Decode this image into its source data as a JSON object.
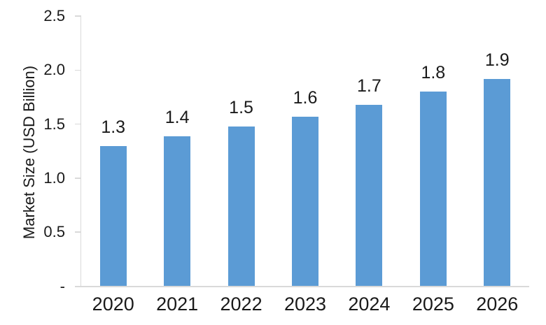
{
  "chart_data": {
    "type": "bar",
    "title": "",
    "xlabel": "",
    "ylabel": "Market Size (USD Billion)",
    "categories": [
      "2020",
      "2021",
      "2022",
      "2023",
      "2024",
      "2025",
      "2026"
    ],
    "values": [
      1.3,
      1.4,
      1.5,
      1.6,
      1.7,
      1.8,
      1.9
    ],
    "value_labels": [
      "1.3",
      "1.4",
      "1.5",
      "1.6",
      "1.7",
      "1.8",
      "1.9"
    ],
    "bar_heights_units": [
      1.3,
      1.39,
      1.48,
      1.57,
      1.68,
      1.8,
      1.92
    ],
    "ylim": [
      0,
      2.5
    ],
    "yticks": [
      {
        "value": 2.5,
        "label": "2.5"
      },
      {
        "value": 2.0,
        "label": "2.0"
      },
      {
        "value": 1.5,
        "label": "1.5"
      },
      {
        "value": 1.0,
        "label": "1.0"
      },
      {
        "value": 0.5,
        "label": "0.5"
      },
      {
        "value": 0.0,
        "label": "-"
      }
    ],
    "grid": false,
    "legend": "none",
    "colors": {
      "bar": "#5B9BD5",
      "axis_line": "#D9D9D9",
      "text": "#1a1a1a",
      "background": "#FFFFFF"
    }
  }
}
